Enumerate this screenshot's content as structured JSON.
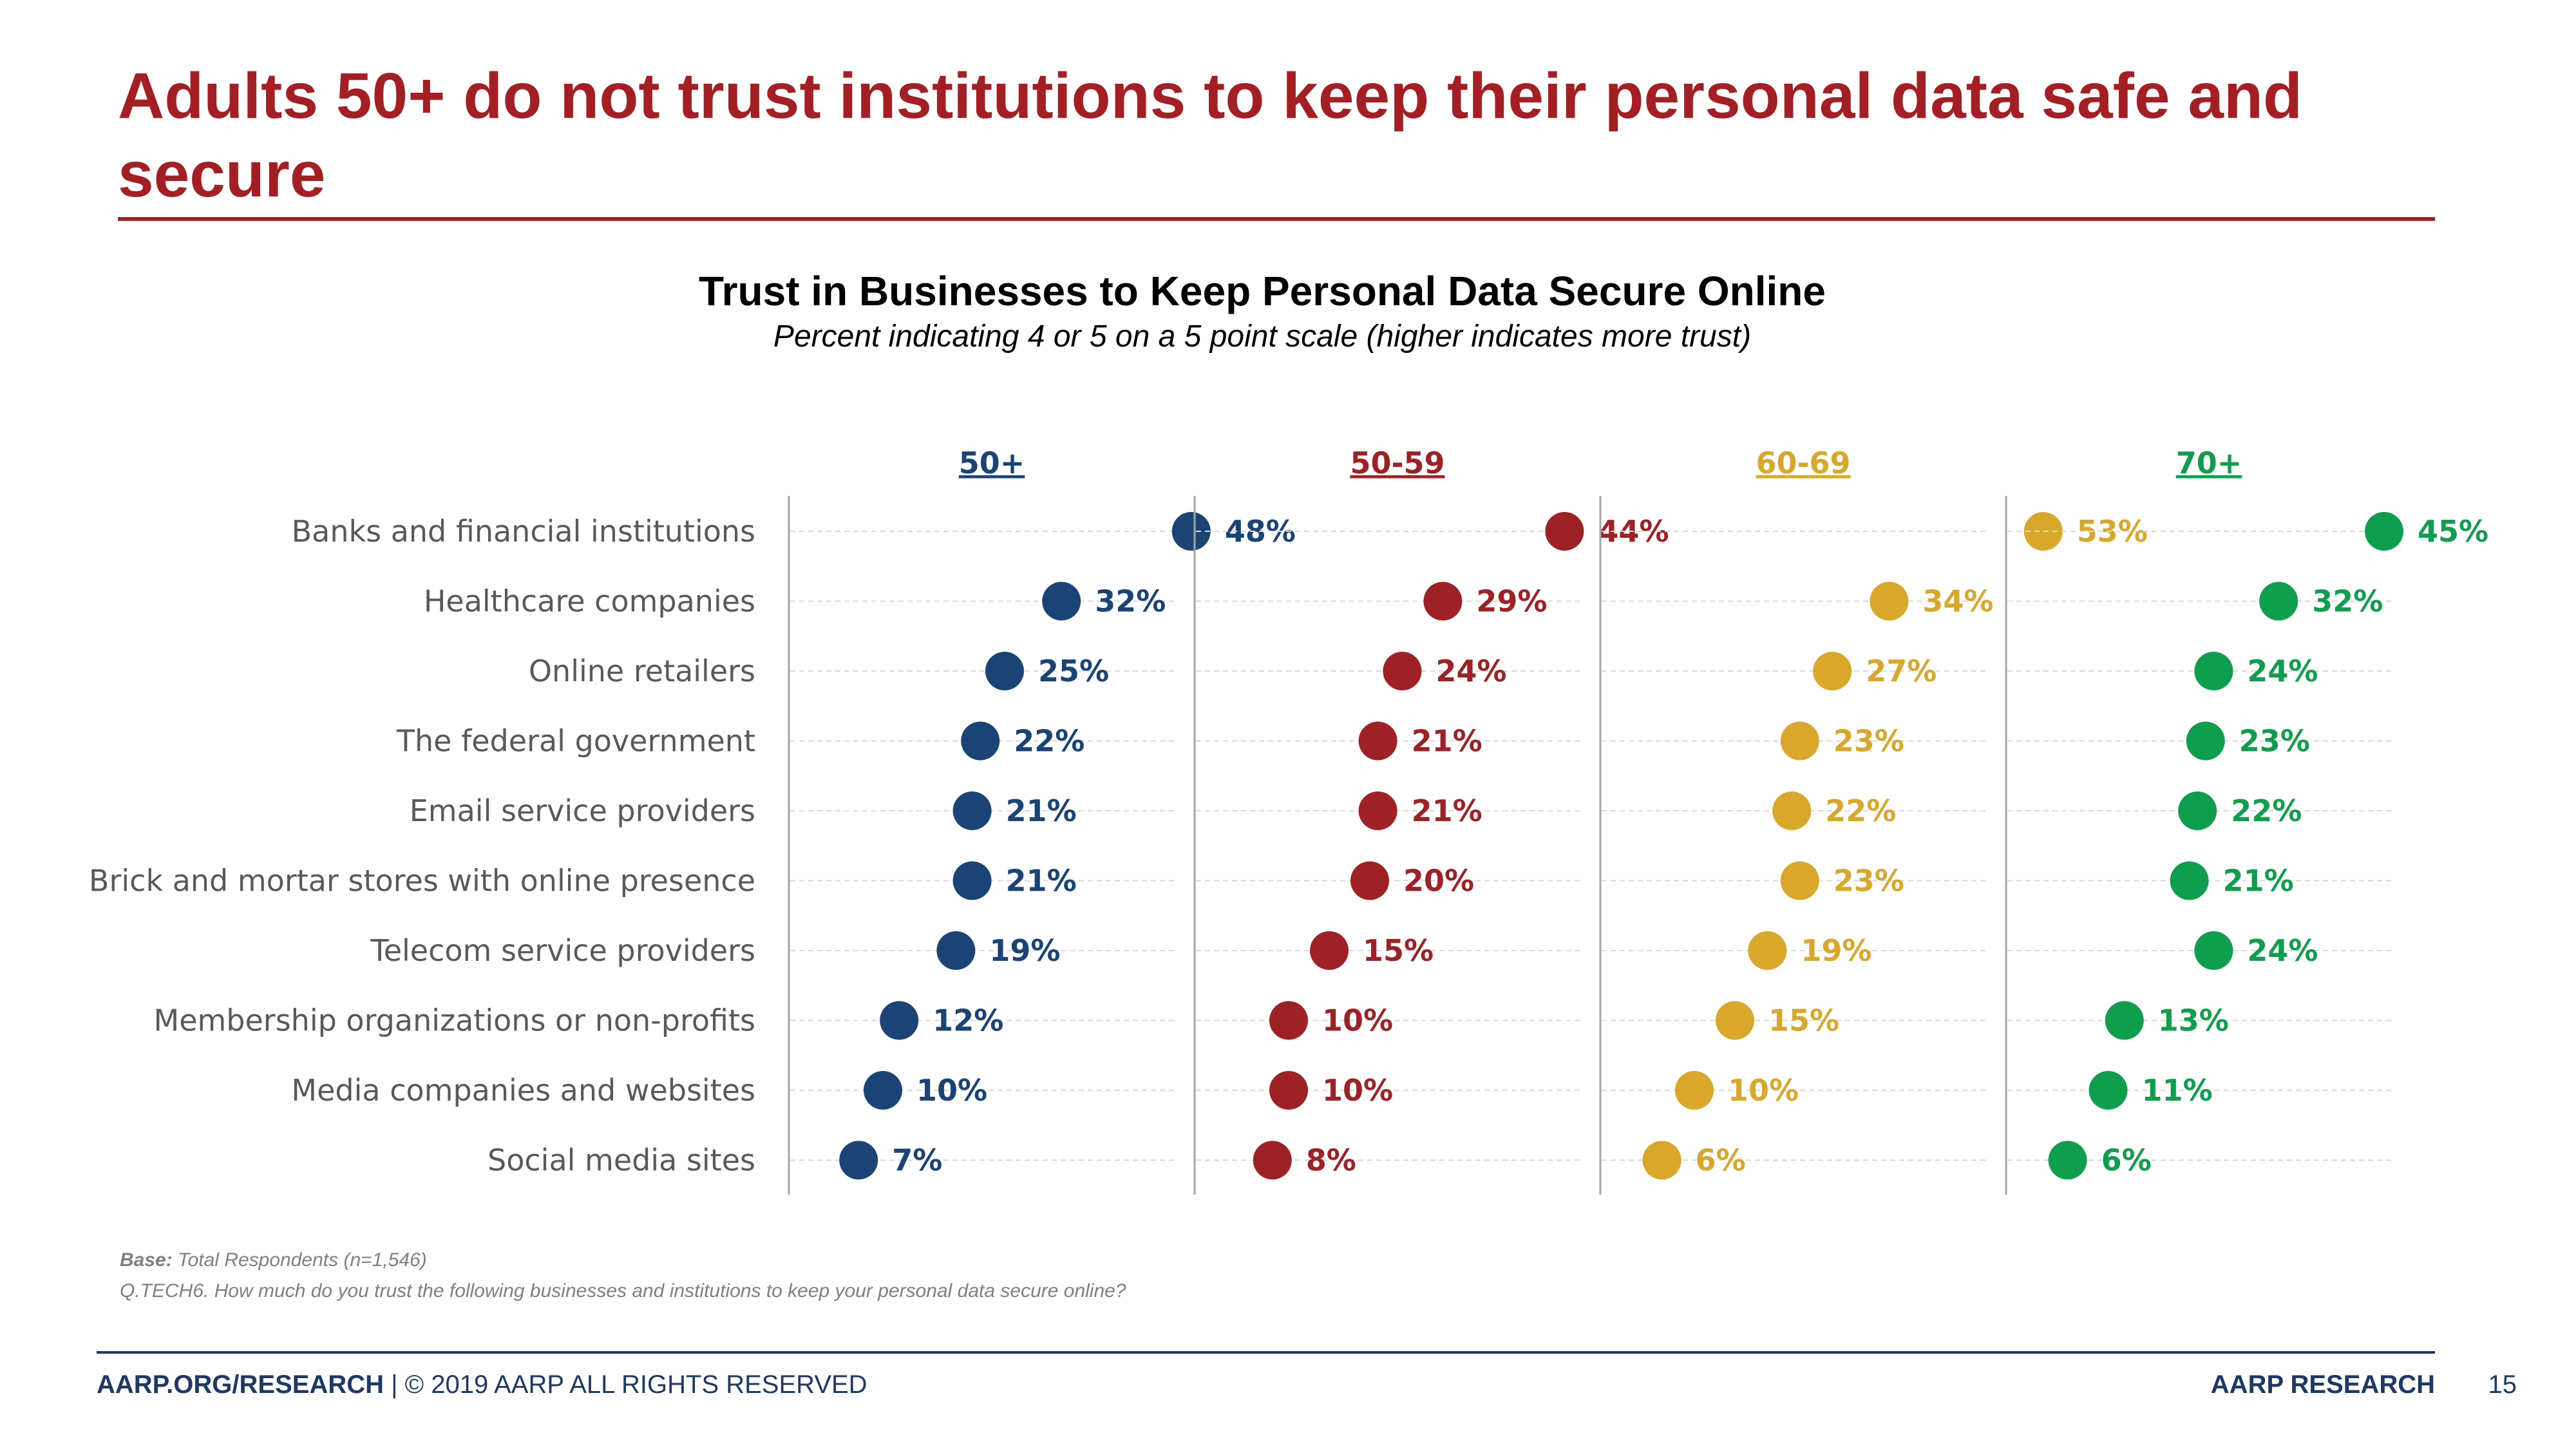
{
  "slide": {
    "title": "Adults 50+ do not trust institutions to keep their personal data safe and secure"
  },
  "chart_data": {
    "type": "scatter",
    "title": "Trust in Businesses to Keep Personal Data Secure Online",
    "subtitle": "Percent indicating 4 or 5 on a 5 point scale (higher indicates more trust)",
    "categories": [
      "Banks and financial institutions",
      "Healthcare companies",
      "Online retailers",
      "The federal government",
      "Email service providers",
      "Brick and mortar stores with online presence",
      "Telecom service providers",
      "Membership organizations or non-profits",
      "Media companies and websites",
      "Social media sites"
    ],
    "series": [
      {
        "name": "50+",
        "color": "#1b4476",
        "values": [
          48,
          32,
          25,
          22,
          21,
          21,
          19,
          12,
          10,
          7
        ]
      },
      {
        "name": "50-59",
        "color": "#9e2125",
        "values": [
          44,
          29,
          24,
          21,
          21,
          20,
          15,
          10,
          10,
          8
        ]
      },
      {
        "name": "60-69",
        "color": "#d9a72a",
        "values": [
          53,
          34,
          27,
          23,
          22,
          23,
          19,
          15,
          10,
          6
        ]
      },
      {
        "name": "70+",
        "color": "#0f9d4e",
        "values": [
          45,
          32,
          24,
          23,
          22,
          21,
          24,
          13,
          11,
          6
        ]
      }
    ],
    "value_suffix": "%",
    "xlim": [
      0,
      100
    ],
    "grid": true
  },
  "footnotes": {
    "base_label": "Base:",
    "base_text": " Total Respondents (n=1,546)",
    "question": "Q.TECH6. How much do you trust the following businesses and institutions to keep your personal data secure online?"
  },
  "footer": {
    "left_strong": "AARP.ORG/RESEARCH",
    "left_rest": " | © 2019 AARP ALL RIGHTS RESERVED",
    "right": "AARP RESEARCH",
    "page_number": "15"
  }
}
